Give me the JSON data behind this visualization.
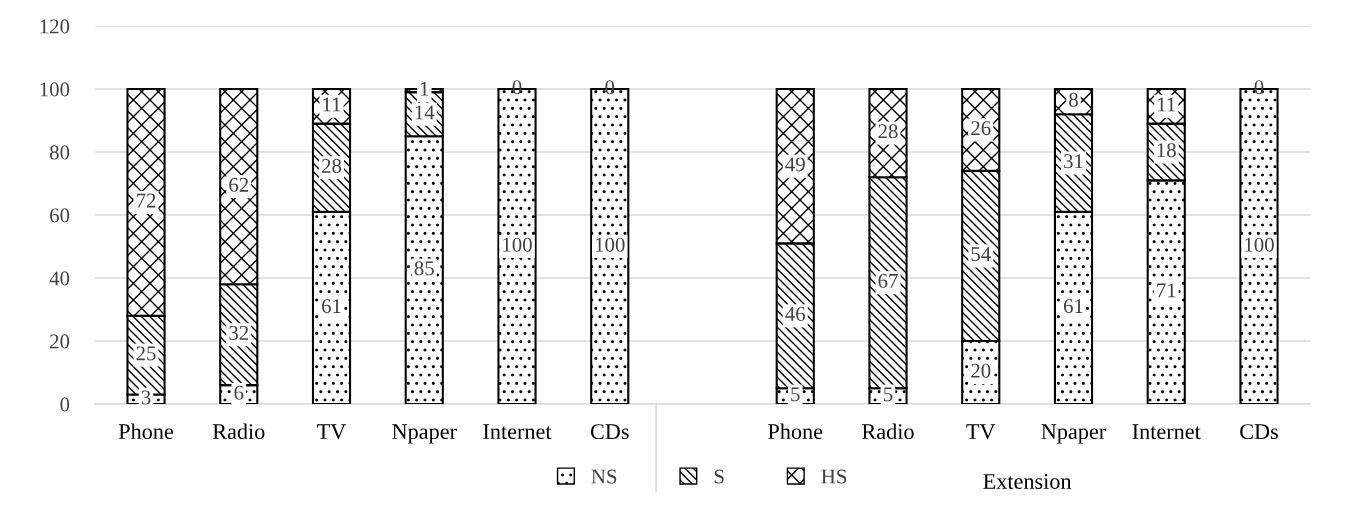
{
  "chart_data": {
    "type": "bar",
    "stacked": true,
    "categories": [
      "Phone",
      "Radio",
      "TV",
      "Npaper",
      "Internet",
      "CDs",
      null,
      "Phone",
      "Radio",
      "TV",
      "Npaper",
      "Internet",
      "CDs"
    ],
    "series": [
      {
        "name": "NS",
        "color": "#000000",
        "values": [
          3,
          6,
          61,
          85,
          100,
          100,
          null,
          5,
          5,
          20,
          61,
          71,
          100
        ],
        "value_labels": [
          "3",
          "6",
          "61",
          "85",
          "100",
          "100",
          null,
          "5",
          "5",
          "20",
          "61",
          "71",
          "100"
        ]
      },
      {
        "name": "S",
        "color": "#000000",
        "values": [
          25,
          32,
          28,
          14,
          0,
          0,
          null,
          46,
          67,
          54,
          31,
          18,
          0
        ],
        "value_labels": [
          "25",
          "32",
          "28",
          "14",
          null,
          null,
          null,
          "46",
          "67",
          "54",
          "31",
          "18",
          null
        ]
      },
      {
        "name": "HS",
        "color": "#000000",
        "values": [
          72,
          62,
          11,
          1,
          0,
          0,
          null,
          49,
          28,
          26,
          8,
          11,
          0
        ],
        "value_labels": [
          "72",
          "62",
          "11",
          "1",
          "0",
          "0",
          null,
          "49",
          "28",
          "26",
          "8",
          "11",
          "0"
        ]
      }
    ],
    "ylim": [
      0,
      120
    ],
    "yticks": [
      0,
      20,
      40,
      60,
      80,
      100,
      120
    ],
    "grid": "y",
    "legend": "bottom",
    "annotations": [
      "Extension"
    ]
  }
}
